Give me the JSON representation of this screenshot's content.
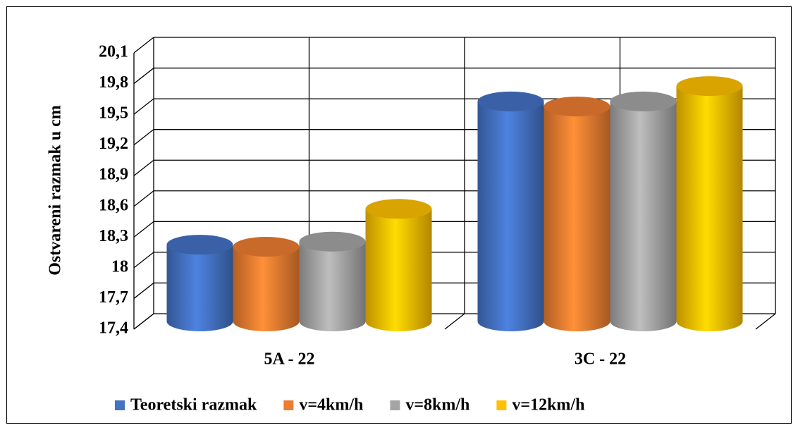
{
  "chart_data": {
    "type": "bar3d-cylinder",
    "y_label": "Ostvareni razmak u cm",
    "categories": [
      "5A - 22",
      "3C - 22"
    ],
    "series": [
      {
        "name": "Teoretski razmak",
        "color": "#4472c4",
        "values": [
          18.15,
          19.55
        ]
      },
      {
        "name": "v=4km/h",
        "color": "#ed7d31",
        "values": [
          18.13,
          19.5
        ]
      },
      {
        "name": "v=8km/h",
        "color": "#a5a5a5",
        "values": [
          18.18,
          19.55
        ]
      },
      {
        "name": "v=12km/h",
        "color": "#ffc000",
        "values": [
          18.5,
          19.7
        ]
      }
    ],
    "ylim": [
      17.4,
      20.1
    ],
    "yticks": [
      {
        "value": 17.4,
        "label": "17,4"
      },
      {
        "value": 17.7,
        "label": "17,7"
      },
      18,
      {
        "value": 18.3,
        "label": "18,3"
      },
      {
        "value": 18.6,
        "label": "18,6"
      },
      {
        "value": 18.9,
        "label": "18,9"
      },
      {
        "value": 19.2,
        "label": "19,2"
      },
      {
        "value": 19.5,
        "label": "19,5"
      },
      {
        "value": 19.8,
        "label": "19,8"
      },
      {
        "value": 20.1,
        "label": "20,1"
      }
    ],
    "grid": true,
    "legend": "bottom"
  }
}
